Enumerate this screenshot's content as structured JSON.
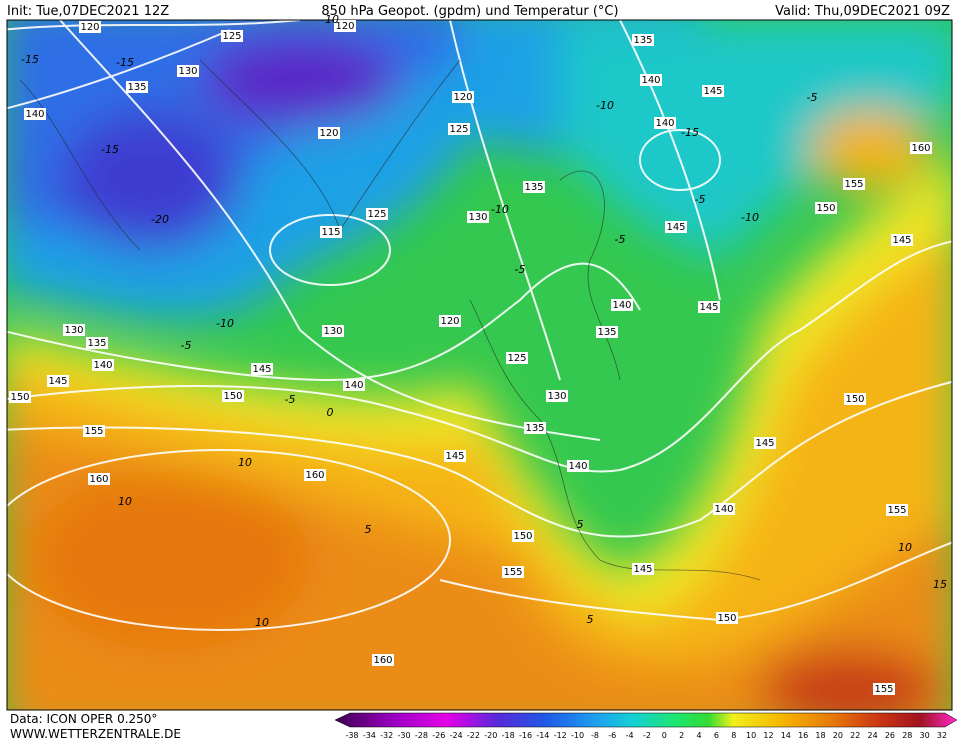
{
  "header": {
    "init": "Init: Tue,07DEC2021 12Z",
    "title": "850 hPa Geopot. (gpdm) und Temperatur (°C)",
    "valid": "Valid: Thu,09DEC2021 09Z"
  },
  "contour_labels": [
    "120",
    "125",
    "135",
    "130",
    "140",
    "120",
    "120",
    "125",
    "120",
    "125",
    "115",
    "130",
    "135",
    "135",
    "140",
    "145",
    "140",
    "145",
    "160",
    "155",
    "150",
    "145",
    "140",
    "145",
    "135",
    "130",
    "135",
    "140",
    "145",
    "150",
    "130",
    "120",
    "125",
    "145",
    "140",
    "150",
    "130",
    "135",
    "155",
    "145",
    "140",
    "145",
    "150",
    "160",
    "160",
    "140",
    "155",
    "150",
    "155",
    "145",
    "150",
    "160",
    "155"
  ],
  "isotherm_labels": [
    "-15",
    "-10",
    "-15",
    "-5",
    "-15",
    "-10",
    "-10",
    "-5",
    "5",
    "-10",
    "-5",
    "-20",
    "10",
    "10",
    "10",
    "5",
    "-5",
    "-15",
    "-10",
    "0",
    "-5",
    "-5",
    "10",
    "5",
    "15"
  ],
  "colorbar": {
    "ticks": [
      "-38",
      "-34",
      "-32",
      "-30",
      "-28",
      "-26",
      "-24",
      "-22",
      "-20",
      "-18",
      "-16",
      "-14",
      "-12",
      "-10",
      "-8",
      "-6",
      "-4",
      "-2",
      "0",
      "2",
      "4",
      "6",
      "8",
      "10",
      "12",
      "14",
      "16",
      "18",
      "20",
      "22",
      "24",
      "26",
      "28",
      "30",
      "32"
    ]
  },
  "footer": {
    "source": "Data: ICON OPER 0.250°",
    "website": "WWW.WETTERZENTRALE.DE"
  }
}
